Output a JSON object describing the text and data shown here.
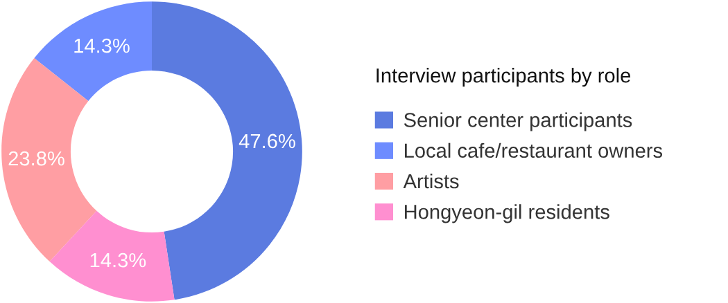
{
  "chart_data": {
    "type": "donut",
    "legend_title": "Interview participants by role",
    "categories": [
      "Senior center participants",
      "Local cafe/restaurant owners",
      "Artists",
      "Hongyeon-gil residents"
    ],
    "values": [
      47.6,
      14.3,
      23.8,
      14.3
    ],
    "colors": [
      "#5b7be0",
      "#6e8cff",
      "#ff9ea3",
      "#ff8fd0"
    ],
    "value_labels": [
      "47.6%",
      "14.3%",
      "23.8%",
      "14.3%"
    ],
    "legend": "right"
  }
}
